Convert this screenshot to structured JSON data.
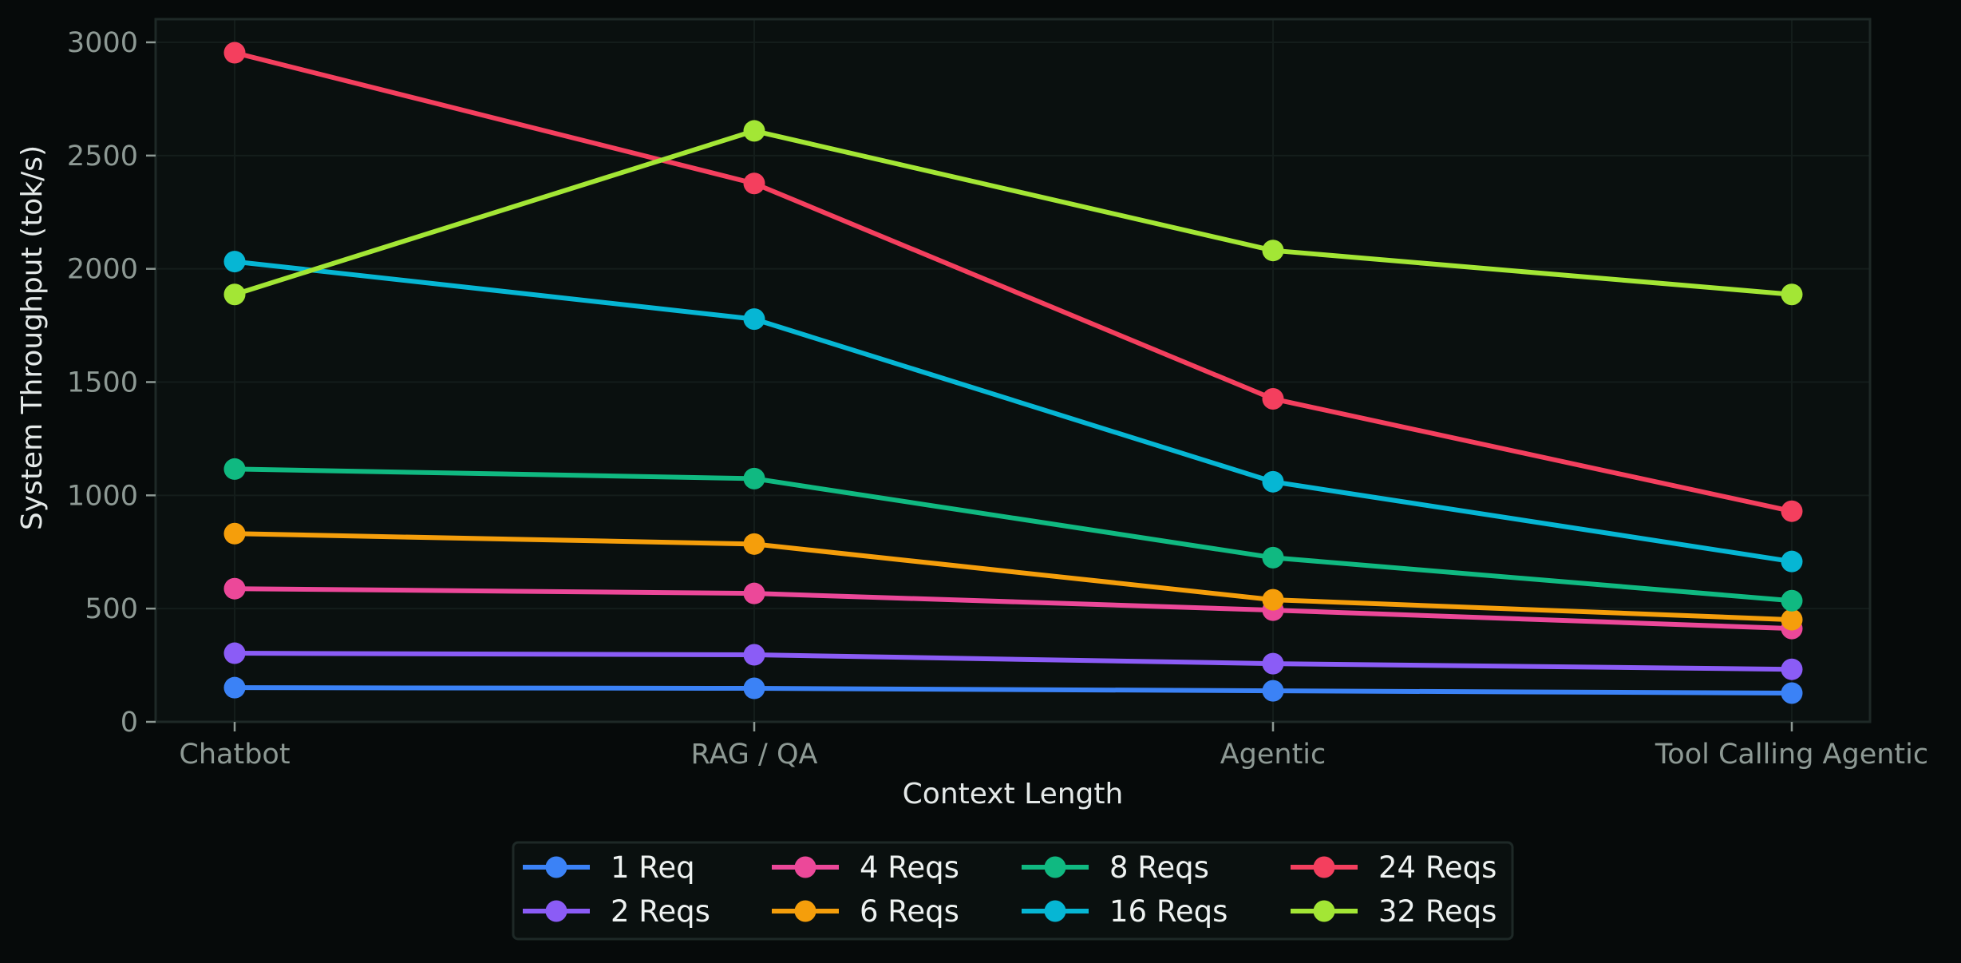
{
  "chart_data": {
    "type": "line",
    "title": "",
    "xlabel": "Context Length",
    "ylabel": "System Throughput (tok/s)",
    "categories": [
      "Chatbot",
      "RAG / QA",
      "Agentic",
      "Tool Calling Agentic"
    ],
    "ylim": [
      0,
      3100
    ],
    "yticks": [
      0,
      500,
      1000,
      1500,
      2000,
      2500,
      3000
    ],
    "grid": true,
    "legend_position": "bottom-center",
    "legend_columns": 4,
    "series": [
      {
        "name": "1 Req",
        "color": "#3b82f6",
        "values": [
          151,
          148,
          137,
          127
        ]
      },
      {
        "name": "2 Reqs",
        "color": "#8b5cf6",
        "values": [
          303,
          296,
          257,
          232
        ]
      },
      {
        "name": "4 Reqs",
        "color": "#ec4899",
        "values": [
          588,
          567,
          493,
          412
        ]
      },
      {
        "name": "6 Reqs",
        "color": "#f59e0b",
        "values": [
          831,
          785,
          539,
          451
        ]
      },
      {
        "name": "8 Reqs",
        "color": "#10b981",
        "values": [
          1116,
          1074,
          725,
          535
        ]
      },
      {
        "name": "16 Reqs",
        "color": "#06b6d4",
        "values": [
          2032,
          1778,
          1060,
          708
        ]
      },
      {
        "name": "24 Reqs",
        "color": "#f43f5e",
        "values": [
          2954,
          2377,
          1426,
          930
        ]
      },
      {
        "name": "32 Reqs",
        "color": "#a3e635",
        "values": [
          1887,
          2609,
          2081,
          1887
        ]
      }
    ]
  },
  "theme": {
    "background": "#060a0a",
    "plot_background": "#0a100f",
    "grid_color": "#141d1b",
    "spine_color": "#1e2927",
    "tick_color": "#8d9994",
    "label_color": "#e4e9e8"
  }
}
